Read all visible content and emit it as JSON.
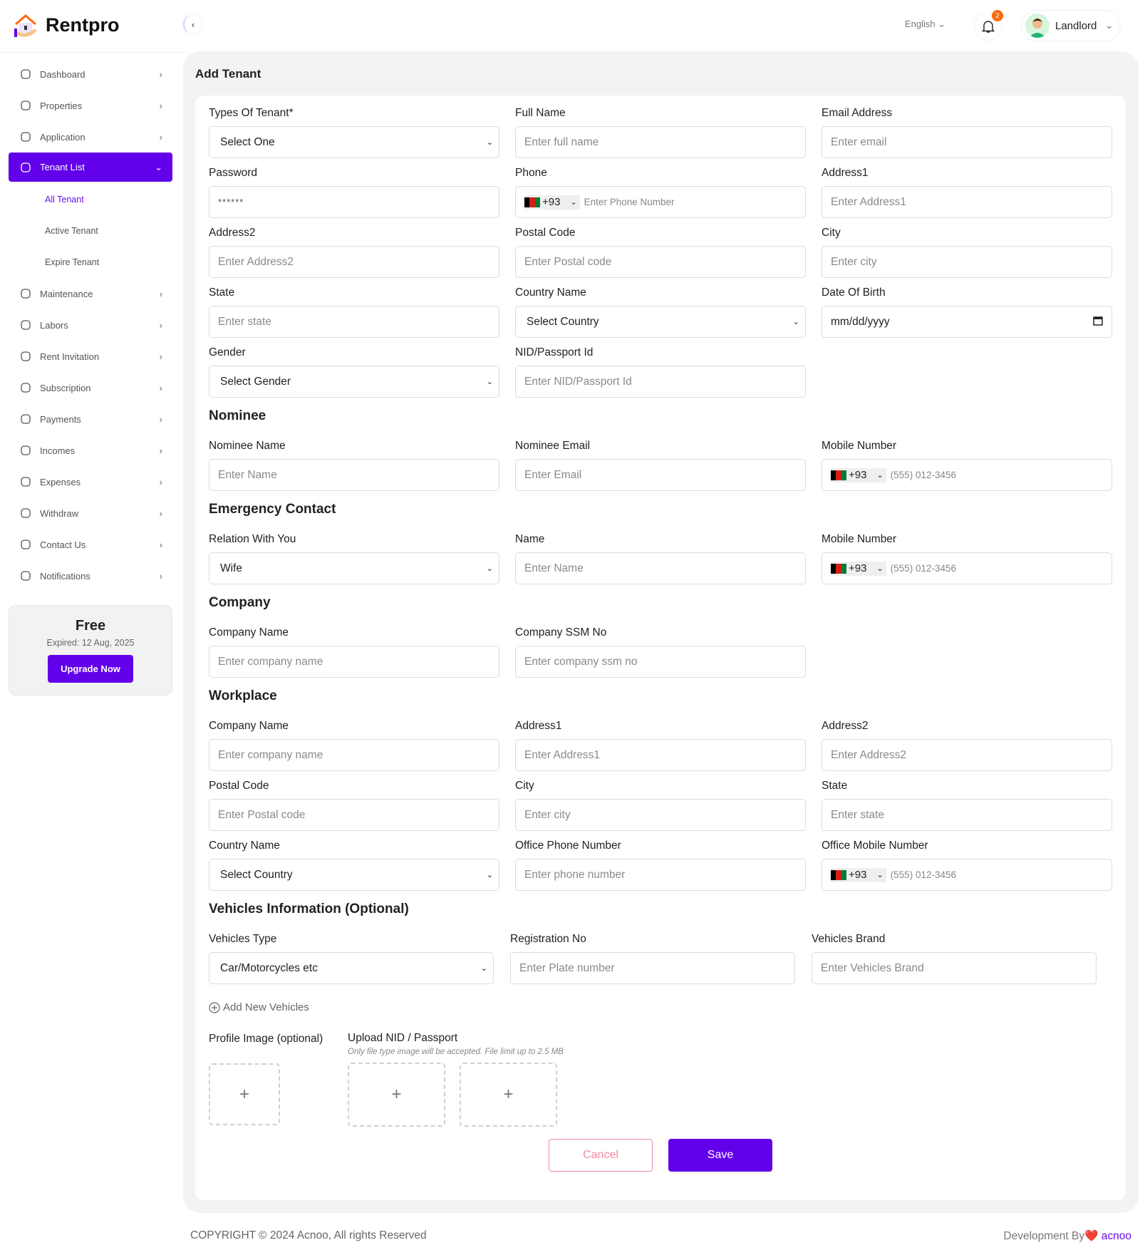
{
  "brand": {
    "name": "Rentpro",
    "accent": "#6200ea"
  },
  "topbar": {
    "language": "English",
    "notification_count": "2",
    "user_name": "Landlord"
  },
  "sidebar": {
    "items": [
      {
        "label": "Dashboard",
        "icon": "home-icon"
      },
      {
        "label": "Properties",
        "icon": "building-icon"
      },
      {
        "label": "Application",
        "icon": "send-icon"
      },
      {
        "label": "Tenant List",
        "icon": "users-icon",
        "active": true,
        "children": [
          {
            "label": "All Tenant",
            "active": true
          },
          {
            "label": "Active Tenant"
          },
          {
            "label": "Expire Tenant"
          }
        ]
      },
      {
        "label": "Maintenance",
        "icon": "clipboard-icon"
      },
      {
        "label": "Labors",
        "icon": "worker-icon"
      },
      {
        "label": "Rent Invitation",
        "icon": "invite-icon"
      },
      {
        "label": "Subscription",
        "icon": "list-icon"
      },
      {
        "label": "Payments",
        "icon": "cash-icon"
      },
      {
        "label": "Incomes",
        "icon": "moneybag-icon"
      },
      {
        "label": "Expenses",
        "icon": "dollar-icon"
      },
      {
        "label": "Withdraw",
        "icon": "withdraw-icon"
      },
      {
        "label": "Contact Us",
        "icon": "chat-icon"
      },
      {
        "label": "Notifications",
        "icon": "bell-icon"
      }
    ],
    "plan": {
      "title": "Free",
      "expiry": "Expired: 12 Aug, 2025",
      "button": "Upgrade Now"
    }
  },
  "page": {
    "title": "Add Tenant"
  },
  "sections": [
    {
      "heading": "",
      "fields": [
        {
          "label": "Types Of Tenant*",
          "type": "select",
          "value": "Select One"
        },
        {
          "label": "Full Name",
          "type": "text",
          "placeholder": "Enter full name"
        },
        {
          "label": "Email Address",
          "type": "text",
          "placeholder": "Enter email"
        },
        {
          "label": "Password",
          "type": "password",
          "value": "******"
        },
        {
          "label": "Phone",
          "type": "phone",
          "code": "+93",
          "placeholder": "Enter Phone Number"
        },
        {
          "label": "Address1",
          "type": "text",
          "placeholder": "Enter Address1"
        },
        {
          "label": "Address2",
          "type": "text",
          "placeholder": "Enter Address2"
        },
        {
          "label": "Postal Code",
          "type": "text",
          "placeholder": "Enter Postal code"
        },
        {
          "label": "City",
          "type": "text",
          "placeholder": "Enter city"
        },
        {
          "label": "State",
          "type": "text",
          "placeholder": "Enter state"
        },
        {
          "label": "Country Name",
          "type": "select",
          "value": "Select Country"
        },
        {
          "label": "Date Of Birth",
          "type": "date",
          "value": "mm/dd/yyyy"
        },
        {
          "label": "Gender",
          "type": "select",
          "value": "Select Gender"
        },
        {
          "label": "NID/Passport Id",
          "type": "text",
          "placeholder": "Enter NID/Passport Id"
        }
      ]
    },
    {
      "heading": "Nominee",
      "fields": [
        {
          "label": "Nominee Name",
          "type": "text",
          "placeholder": "Enter Name"
        },
        {
          "label": "Nominee Email",
          "type": "text",
          "placeholder": "Enter Email"
        },
        {
          "label": "Mobile Number",
          "type": "phone",
          "code": "+93",
          "placeholder": "(555) 012-3456"
        }
      ]
    },
    {
      "heading": "Emergency Contact",
      "fields": [
        {
          "label": "Relation With You",
          "type": "select",
          "value": "Wife"
        },
        {
          "label": "Name",
          "type": "text",
          "placeholder": "Enter Name"
        },
        {
          "label": "Mobile Number",
          "type": "phone",
          "code": "+93",
          "placeholder": "(555) 012-3456"
        }
      ]
    },
    {
      "heading": "Company",
      "fields": [
        {
          "label": "Company Name",
          "type": "text",
          "placeholder": "Enter company name"
        },
        {
          "label": "Company SSM No",
          "type": "text",
          "placeholder": "Enter company ssm no"
        }
      ]
    },
    {
      "heading": "Workplace",
      "fields": [
        {
          "label": "Company Name",
          "type": "text",
          "placeholder": "Enter company name"
        },
        {
          "label": "Address1",
          "type": "text",
          "placeholder": "Enter Address1"
        },
        {
          "label": "Address2",
          "type": "text",
          "placeholder": "Enter Address2"
        },
        {
          "label": "Postal Code",
          "type": "text",
          "placeholder": "Enter Postal code"
        },
        {
          "label": "City",
          "type": "text",
          "placeholder": "Enter city"
        },
        {
          "label": "State",
          "type": "text",
          "placeholder": "Enter state"
        },
        {
          "label": "Country Name",
          "type": "select",
          "value": "Select Country"
        },
        {
          "label": "Office Phone Number",
          "type": "text",
          "placeholder": "Enter phone number"
        },
        {
          "label": "Office Mobile Number",
          "type": "phone",
          "code": "+93",
          "placeholder": "(555) 012-3456"
        }
      ]
    },
    {
      "heading": "Vehicles Information (Optional)",
      "vehicles": true,
      "fields": [
        {
          "label": "Vehicles Type",
          "type": "select",
          "value": "Car/Motorcycles etc"
        },
        {
          "label": "Registration No",
          "type": "text",
          "placeholder": "Enter Plate number"
        },
        {
          "label": "Vehicles Brand",
          "type": "text",
          "placeholder": "Enter Vehicles Brand"
        }
      ]
    }
  ],
  "add_vehicle": "Add New Vehicles",
  "uploads": {
    "profile_label": "Profile Image (optional)",
    "nid_label": "Upload NID / Passport",
    "nid_hint": "Only file type image will be accepted. File limit up to 2.5 MB",
    "plus": "+"
  },
  "actions": {
    "cancel": "Cancel",
    "save": "Save"
  },
  "footer": {
    "copyright": "COPYRIGHT © 2024 Acnoo, All rights Reserved",
    "dev_prefix": "Development By",
    "dev_heart": "❤️",
    "dev_name": "acnoo"
  }
}
